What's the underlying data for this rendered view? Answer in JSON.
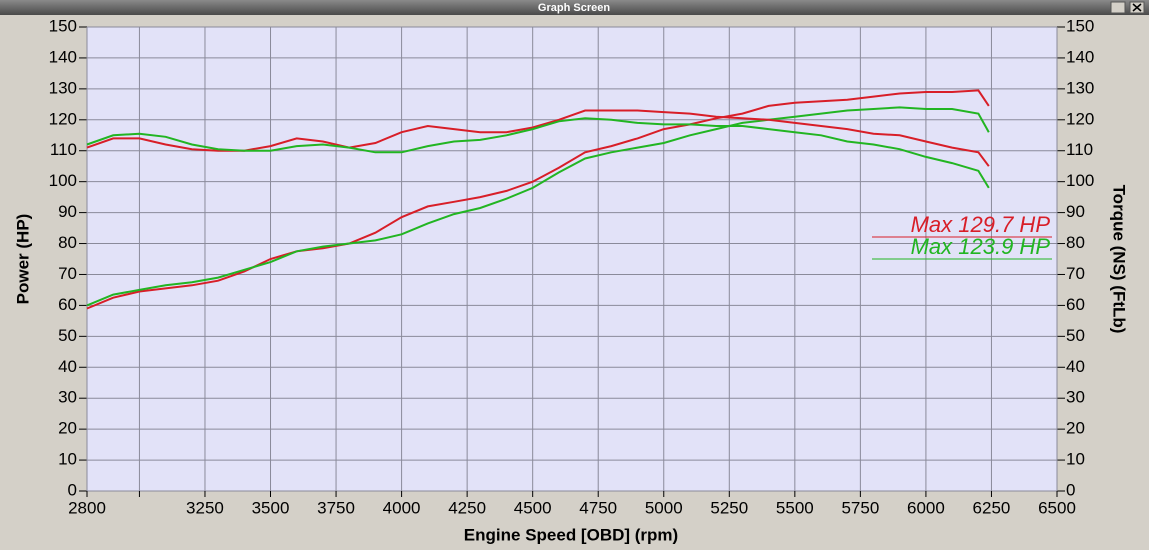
{
  "chart_data": {
    "type": "line",
    "title": "Graph Screen",
    "x_label": "Engine Speed [OBD] (rpm)",
    "y_label": "Power (HP)",
    "y2_label": "Torque (NS) (FtLb)",
    "x": [
      2800,
      2900,
      3000,
      3100,
      3200,
      3300,
      3400,
      3500,
      3600,
      3700,
      3800,
      3900,
      4000,
      4100,
      4200,
      4300,
      4400,
      4500,
      4600,
      4700,
      4800,
      4900,
      5000,
      5100,
      5200,
      5300,
      5400,
      5500,
      5600,
      5700,
      5800,
      5900,
      6000,
      6100,
      6200,
      6240
    ],
    "series": [
      {
        "color": "#d81e28",
        "values": [
          59,
          62.5,
          64.5,
          65.5,
          66.5,
          68,
          71,
          75,
          77.5,
          78.5,
          80,
          83.5,
          88.5,
          92,
          93.5,
          95,
          97,
          100,
          104.5,
          109.5,
          111.5,
          114,
          117,
          118.5,
          120.5,
          122,
          124.5,
          125.5,
          126,
          126.5,
          127.5,
          128.5,
          129,
          129,
          129.5,
          124.5
        ]
      },
      {
        "color": "#22b522",
        "values": [
          60,
          63.5,
          65,
          66.5,
          67.5,
          69,
          71.5,
          74,
          77.5,
          79,
          80,
          81,
          83,
          86.5,
          89.5,
          91.5,
          94.5,
          98,
          103,
          107.5,
          109.5,
          111,
          112.5,
          115,
          117,
          119,
          120,
          121,
          122,
          123,
          123.5,
          124,
          123.5,
          123.5,
          122,
          116
        ]
      },
      {
        "color": "#d81e28",
        "axis": "y2",
        "values": [
          111,
          114,
          114,
          112,
          110.5,
          110,
          110,
          111.5,
          114,
          113,
          111,
          112.5,
          116,
          118,
          117,
          116,
          116,
          117.5,
          120,
          123,
          123,
          123,
          122.5,
          122,
          121,
          120.5,
          120,
          119,
          118,
          117,
          115.5,
          115,
          113,
          111,
          109.5,
          105
        ]
      },
      {
        "color": "#22b522",
        "axis": "y2",
        "values": [
          112,
          115,
          115.5,
          114.5,
          112,
          110.5,
          110,
          110,
          111.5,
          112,
          111,
          109.5,
          109.5,
          111.5,
          113,
          113.5,
          115,
          117,
          119.5,
          120.5,
          120,
          119,
          118.5,
          118.5,
          118,
          118,
          117,
          116,
          115,
          113,
          112,
          110.5,
          108,
          106,
          103.5,
          98
        ]
      }
    ],
    "annotations": [
      {
        "text": "Max 129.7 HP",
        "color": "#d81e28"
      },
      {
        "text": "Max 123.9 HP",
        "color": "#22b522"
      }
    ],
    "xlim": [
      2800,
      6500
    ],
    "xticks": [
      2800,
      {
        "value": 3000,
        "label": null
      },
      3250,
      3500,
      3750,
      4000,
      4250,
      4500,
      4750,
      5000,
      5250,
      5500,
      5750,
      6000,
      6250,
      6500
    ],
    "ylim": [
      0,
      150
    ],
    "yticks": [
      0,
      10,
      20,
      30,
      40,
      50,
      60,
      70,
      80,
      90,
      100,
      110,
      120,
      130,
      140,
      150
    ],
    "y2lim": [
      0,
      150
    ],
    "y2ticks": [
      0,
      10,
      20,
      30,
      40,
      50,
      60,
      70,
      80,
      90,
      100,
      110,
      120,
      130,
      140,
      150
    ],
    "grid": true,
    "background": "#e2e2f8"
  }
}
